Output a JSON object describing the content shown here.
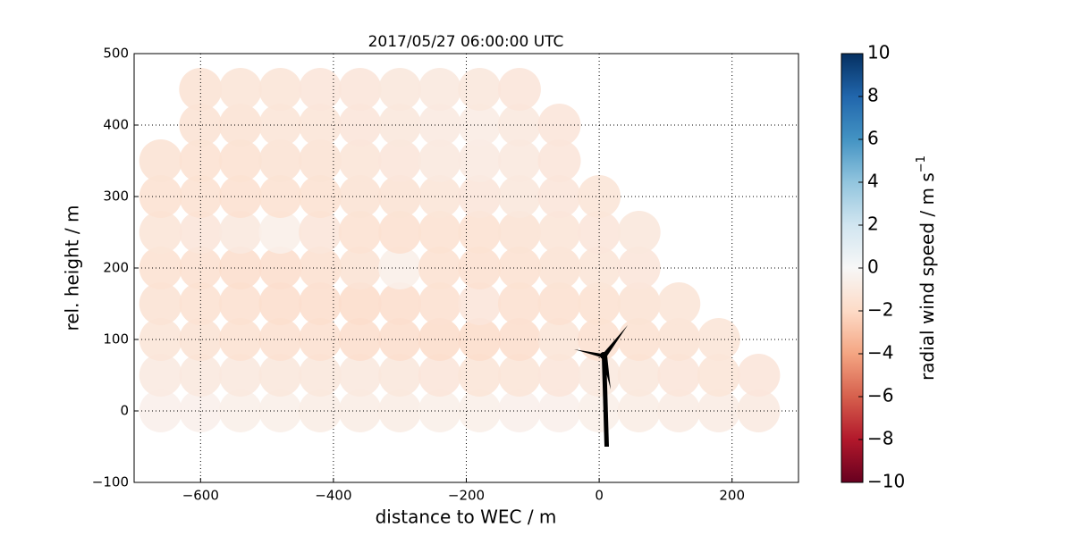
{
  "chart_data": {
    "type": "scatter",
    "title": "2017/05/27 06:00:00 UTC",
    "x_label": "distance to WEC / m",
    "y_label": "rel. height / m",
    "colorbar_label": "radial wind speed / m s",
    "colorbar_label_exponent": "−1",
    "xlim": [
      -700,
      300
    ],
    "ylim": [
      -100,
      500
    ],
    "xticks": [
      {
        "value": -600,
        "label": "−600"
      },
      {
        "value": -400,
        "label": "−400"
      },
      {
        "value": -200,
        "label": "−200"
      },
      0,
      200
    ],
    "yticks": [
      {
        "value": -100,
        "label": "−100"
      },
      0,
      100,
      200,
      300,
      400,
      500
    ],
    "grid": true,
    "clim": [
      -10,
      10
    ],
    "cticks": [
      {
        "value": -10,
        "label": "−10"
      },
      {
        "value": -8,
        "label": "−8"
      },
      {
        "value": -6,
        "label": "−6"
      },
      {
        "value": -4,
        "label": "−4"
      },
      {
        "value": -2,
        "label": "−2"
      },
      0,
      2,
      4,
      6,
      8,
      10
    ],
    "colormap": [
      "#67001f",
      "#b2182b",
      "#d6604d",
      "#f4a582",
      "#fddbc7",
      "#f7f7f7",
      "#d1e5f0",
      "#92c5de",
      "#4393c3",
      "#2166ac",
      "#053061"
    ],
    "rows": [
      {
        "y": 0,
        "x": [
          -660,
          -600,
          -540,
          -480,
          -420,
          -360,
          -300,
          -240,
          -180,
          -120,
          -60,
          0,
          60,
          120,
          180,
          240
        ],
        "values": [
          -0.5,
          -0.5,
          -0.6,
          -0.6,
          -0.7,
          -0.7,
          -0.7,
          -0.6,
          -0.6,
          -0.5,
          -0.5,
          -0.6,
          -0.7,
          -0.8,
          -0.8,
          -0.9
        ]
      },
      {
        "y": 50,
        "x": [
          -660,
          -600,
          -540,
          -480,
          -420,
          -360,
          -300,
          -240,
          -180,
          -120,
          -60,
          0,
          60,
          120,
          180,
          240
        ],
        "values": [
          -0.9,
          -1.0,
          -1.0,
          -1.1,
          -1.1,
          -1.0,
          -1.1,
          -1.2,
          -1.3,
          -1.3,
          -1.2,
          -1.0,
          -1.1,
          -1.2,
          -1.3,
          -1.2
        ]
      },
      {
        "y": 100,
        "x": [
          -660,
          -600,
          -540,
          -480,
          -420,
          -360,
          -300,
          -240,
          -180,
          -120,
          -60,
          0,
          60,
          120,
          180
        ],
        "values": [
          -1.3,
          -1.4,
          -1.5,
          -1.6,
          -1.6,
          -1.7,
          -1.7,
          -1.8,
          -1.8,
          -1.7,
          -1.3,
          -1.6,
          -1.5,
          -1.4,
          -1.3
        ]
      },
      {
        "y": 150,
        "x": [
          -660,
          -600,
          -540,
          -480,
          -420,
          -360,
          -300,
          -240,
          -180,
          -120,
          -60,
          0,
          60,
          120
        ],
        "values": [
          -1.4,
          -1.5,
          -1.6,
          -1.7,
          -1.7,
          -1.8,
          -1.7,
          -1.6,
          -1.2,
          -1.6,
          -1.6,
          -1.5,
          -1.4,
          -1.3
        ]
      },
      {
        "y": 200,
        "x": [
          -660,
          -600,
          -540,
          -480,
          -420,
          -360,
          -300,
          -240,
          -180,
          -120,
          -60,
          0,
          60
        ],
        "values": [
          -1.5,
          -1.6,
          -1.7,
          -1.7,
          -1.6,
          -1.4,
          -0.6,
          -1.5,
          -1.6,
          -1.5,
          -1.4,
          -1.3,
          -1.2
        ]
      },
      {
        "y": 250,
        "x": [
          -660,
          -600,
          -540,
          -480,
          -420,
          -360,
          -300,
          -240,
          -180,
          -120,
          -60,
          0,
          60
        ],
        "values": [
          -1.3,
          -1.2,
          -1.0,
          -0.6,
          -1.2,
          -1.5,
          -1.6,
          -1.5,
          -1.5,
          -1.4,
          -1.3,
          -1.2,
          -1.1
        ]
      },
      {
        "y": 300,
        "x": [
          -660,
          -600,
          -540,
          -480,
          -420,
          -360,
          -300,
          -240,
          -180,
          -120,
          -60,
          0
        ],
        "values": [
          -1.5,
          -1.5,
          -1.6,
          -1.5,
          -1.5,
          -1.4,
          -1.4,
          -1.3,
          -1.2,
          -1.1,
          -1.2,
          -1.3
        ]
      },
      {
        "y": 350,
        "x": [
          -660,
          -600,
          -540,
          -480,
          -420,
          -360,
          -300,
          -240,
          -180,
          -120,
          -60
        ],
        "values": [
          -1.4,
          -1.5,
          -1.5,
          -1.4,
          -1.4,
          -1.3,
          -1.2,
          -1.0,
          -0.9,
          -1.0,
          -1.2
        ]
      },
      {
        "y": 400,
        "x": [
          -600,
          -540,
          -480,
          -420,
          -360,
          -300,
          -240,
          -180,
          -120,
          -60
        ],
        "values": [
          -1.4,
          -1.4,
          -1.3,
          -1.3,
          -1.2,
          -1.1,
          -0.9,
          -0.8,
          -1.0,
          -1.2
        ]
      },
      {
        "y": 450,
        "x": [
          -600,
          -540,
          -480,
          -420,
          -360,
          -300,
          -240,
          -180,
          -120
        ],
        "values": [
          -1.4,
          -1.3,
          -1.3,
          -1.2,
          -1.2,
          -1.1,
          -1.0,
          -1.1,
          -1.2
        ]
      }
    ]
  }
}
